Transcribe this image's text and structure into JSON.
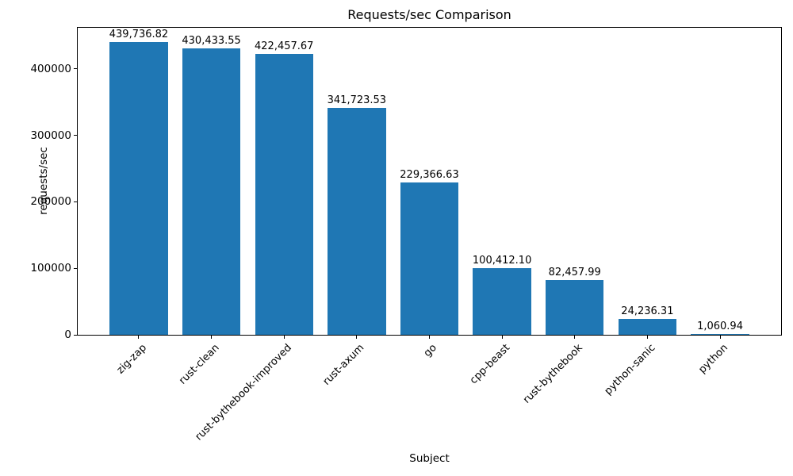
{
  "chart_data": {
    "type": "bar",
    "title": "Requests/sec Comparison",
    "xlabel": "Subject",
    "ylabel": "requests/sec",
    "categories": [
      "zig-zap",
      "rust-clean",
      "rust-bythebook-improved",
      "rust-axum",
      "go",
      "cpp-beast",
      "rust-bythebook",
      "python-sanic",
      "python"
    ],
    "values": [
      439736.82,
      430433.55,
      422457.67,
      341723.53,
      229366.63,
      100412.1,
      82457.99,
      24236.31,
      1060.94
    ],
    "value_labels": [
      "439,736.82",
      "430,433.55",
      "422,457.67",
      "341,723.53",
      "229,366.63",
      "100,412.10",
      "82,457.99",
      "24,236.31",
      "1,060.94"
    ],
    "yticks": [
      0,
      100000,
      200000,
      300000,
      400000
    ],
    "ytick_labels": [
      "0",
      "100000",
      "200000",
      "300000",
      "400000"
    ],
    "ylim": [
      0,
      461724
    ],
    "x_tick_rotation": 45,
    "grid": false,
    "legend": null,
    "bar_color": "#1f77b4",
    "background_color": "#ffffff",
    "text_color": "#000000"
  }
}
